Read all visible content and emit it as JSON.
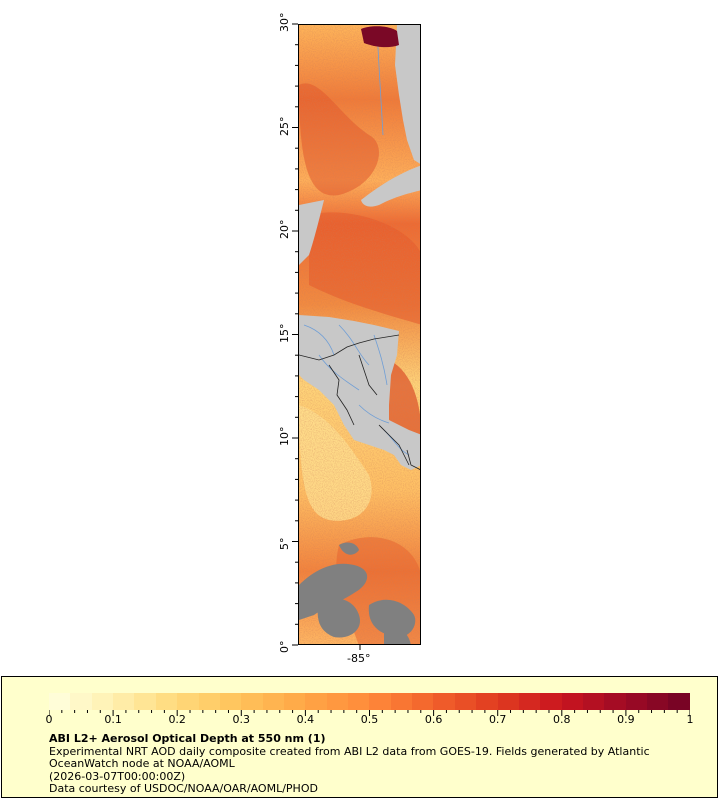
{
  "map": {
    "lat_ticks": [
      "0°",
      "5°",
      "10°",
      "15°",
      "20°",
      "25°",
      "30°"
    ],
    "lon_ticks": [
      "-85°"
    ],
    "colors": {
      "land": "#c8c8c8",
      "missing": "#808080",
      "rivers": "#6f9ed6",
      "borders": "#222222"
    }
  },
  "colorbar": {
    "min": 0,
    "max": 1,
    "labels": [
      "0",
      "0.1",
      "0.2",
      "0.3",
      "0.4",
      "0.5",
      "0.6",
      "0.7",
      "0.8",
      "0.9",
      "1"
    ],
    "colors": [
      "#ffffe0",
      "#fff0b0",
      "#ffd97a",
      "#ffc25a",
      "#ffa646",
      "#ff8a3a",
      "#f2622c",
      "#e03b20",
      "#c9151f",
      "#9e0a25",
      "#720325"
    ]
  },
  "legend": {
    "title": "ABI L2+ Aerosol Optical Depth at 550 nm (1)",
    "line1": "Experimental NRT AOD daily composite created from ABI L2 data from GOES-19. Fields generated by Atlantic OceanWatch node at NOAA/AOML",
    "line2": "(2026-03-07T00:00:00Z)",
    "line3": "Data courtesy of USDOC/NOAA/OAR/AOML/PHOD"
  }
}
